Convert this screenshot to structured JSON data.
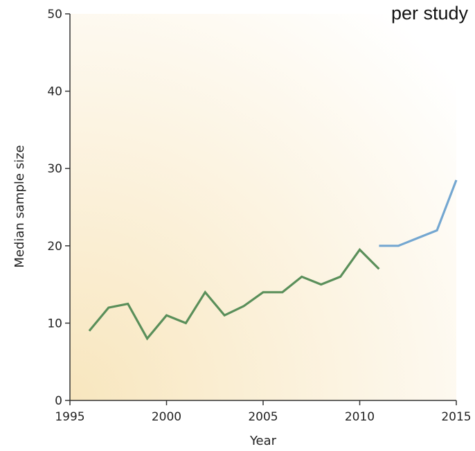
{
  "chart_data": {
    "type": "line",
    "title": "per study",
    "xlabel": "Year",
    "ylabel": "Median sample size",
    "xlim": [
      1995,
      2015
    ],
    "ylim": [
      0,
      50
    ],
    "x_ticks": [
      1995,
      2000,
      2005,
      2010,
      2015
    ],
    "y_ticks": [
      0,
      10,
      20,
      30,
      40,
      50
    ],
    "grid": false,
    "legend": "none",
    "series": [
      {
        "color": "#5a8f5a",
        "x": [
          1996,
          1997,
          1998,
          1999,
          2000,
          2001,
          2002,
          2003,
          2004,
          2005,
          2006,
          2007,
          2008,
          2009,
          2010,
          2011
        ],
        "y": [
          9,
          12,
          12.5,
          8,
          11,
          10,
          14,
          11,
          12.2,
          14,
          14,
          16,
          15,
          16,
          19.5,
          17
        ]
      },
      {
        "color": "#74a7d1",
        "x": [
          2011,
          2012,
          2013,
          2014,
          2015
        ],
        "y": [
          20,
          20,
          21,
          22,
          28.5
        ]
      }
    ],
    "background": {
      "from": "#f8e6be",
      "to": "#ffffff"
    }
  }
}
